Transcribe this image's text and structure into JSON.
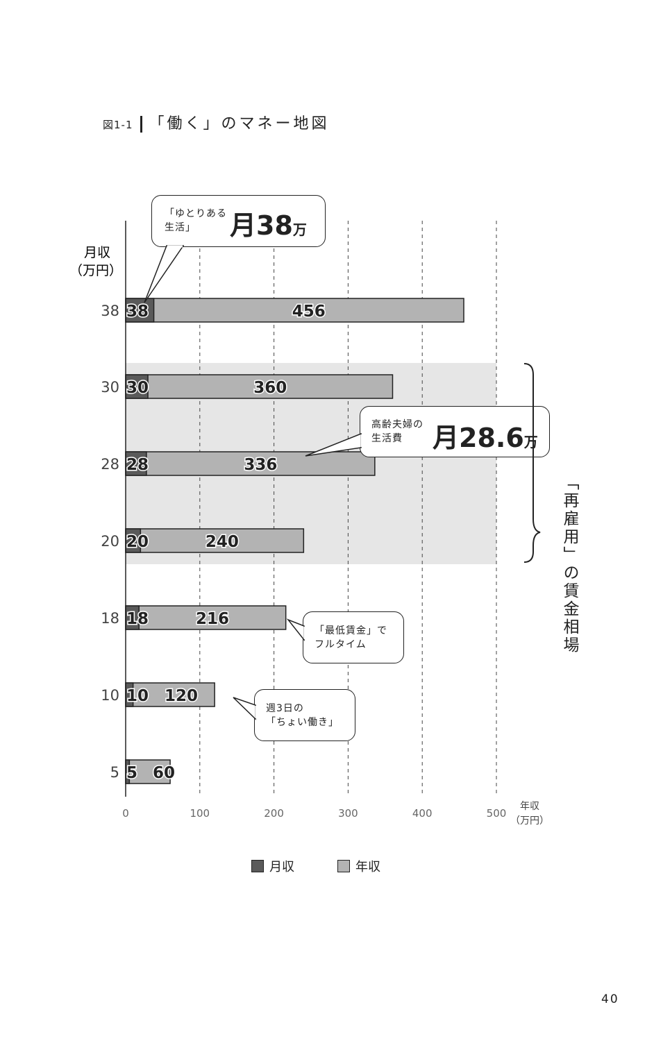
{
  "title": {
    "figure_label": "図1-1",
    "text": "「働く」のマネー地図"
  },
  "page_number": "40",
  "chart_data": {
    "type": "bar",
    "orientation": "horizontal",
    "ylabel": [
      "月収",
      "（万円）"
    ],
    "xlabel": [
      "年収",
      "（万円）"
    ],
    "categories": [
      "38",
      "30",
      "28",
      "20",
      "18",
      "10",
      "5"
    ],
    "series": [
      {
        "name": "月収",
        "values": [
          38,
          30,
          28,
          20,
          18,
          10,
          5
        ],
        "color": "#5a5a5a"
      },
      {
        "name": "年収",
        "values": [
          456,
          360,
          336,
          240,
          216,
          120,
          60
        ],
        "color": "#b3b3b3"
      }
    ],
    "xlim": [
      0,
      500
    ],
    "xticks": [
      "0",
      "100",
      "200",
      "300",
      "400",
      "500"
    ],
    "grid": "vertical dashed",
    "legend": "bottom",
    "highlight_band": {
      "from_category": "30",
      "to_category": "20",
      "color": "#e6e6e6",
      "label": "「再雇用」の賃金相場"
    }
  },
  "callouts": {
    "c1": {
      "small": [
        "「ゆとりある",
        "生活」"
      ],
      "big": "月38",
      "unit": "万"
    },
    "c2": {
      "small": [
        "高齢夫婦の",
        "生活費"
      ],
      "big": "月28.6",
      "unit": "万"
    },
    "c3": {
      "small": [
        "「最低賃金」で",
        "フルタイム"
      ]
    },
    "c4": {
      "small": [
        "週3日の",
        "「ちょい働き」"
      ]
    }
  },
  "legend": {
    "items": [
      "月収",
      "年収"
    ]
  }
}
